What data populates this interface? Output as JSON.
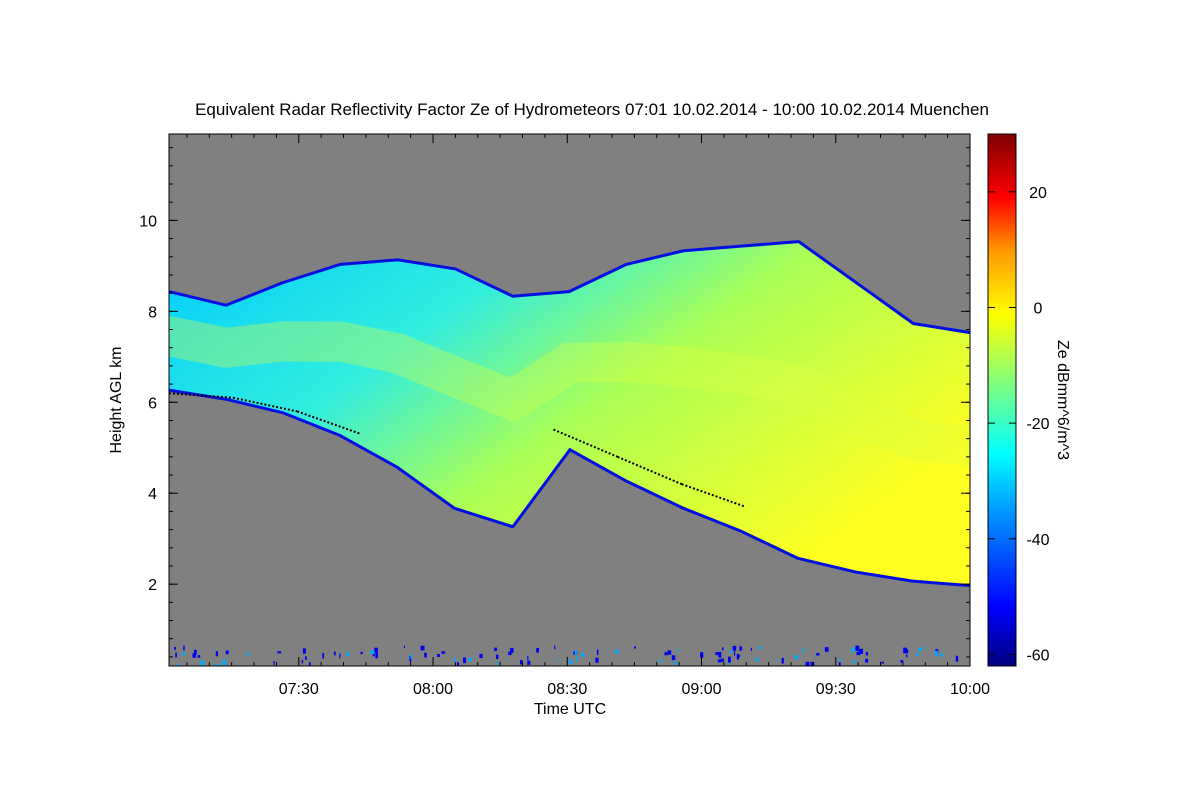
{
  "chart_data": {
    "type": "heatmap",
    "title": "Equivalent Radar Reflectivity Factor Ze of Hydrometeors   07:01 10.02.2014 - 10:00 10.02.2014 Muenchen",
    "xlabel": "Time UTC",
    "ylabel": "Height AGL km",
    "colorbar_label": "Ze dBmm^6/m^3",
    "x_range": [
      "07:01",
      "10:00"
    ],
    "x_ticks": [
      "07:30",
      "08:00",
      "08:30",
      "09:00",
      "09:30",
      "10:00"
    ],
    "y_range": [
      0.2,
      11.9
    ],
    "y_ticks": [
      "2",
      "4",
      "6",
      "8",
      "10"
    ],
    "colorbar_range": [
      -62,
      30
    ],
    "colorbar_ticks": [
      "20",
      "0",
      "-20",
      "-40",
      "-60"
    ],
    "colormap": [
      "#00007f",
      "#0000ff",
      "#007fff",
      "#00ffff",
      "#7fff7f",
      "#ffff00",
      "#ff7f00",
      "#ff0000",
      "#7f0000"
    ],
    "background_color": "#808080",
    "cloud": {
      "top_km": [
        8.4,
        8.1,
        8.6,
        9.0,
        9.1,
        8.9,
        8.3,
        8.4,
        9.0,
        9.3,
        9.4,
        9.5,
        8.6,
        7.7,
        7.5
      ],
      "base_km": [
        6.3,
        6.1,
        5.8,
        5.3,
        4.6,
        3.7,
        3.3,
        5.0,
        4.3,
        3.7,
        3.2,
        2.6,
        2.3,
        2.1,
        2.0
      ]
    },
    "melting_layer_km": [
      6.2,
      6.1,
      5.8,
      5.3,
      null,
      null,
      5.4,
      4.8,
      4.2,
      3.7
    ]
  }
}
